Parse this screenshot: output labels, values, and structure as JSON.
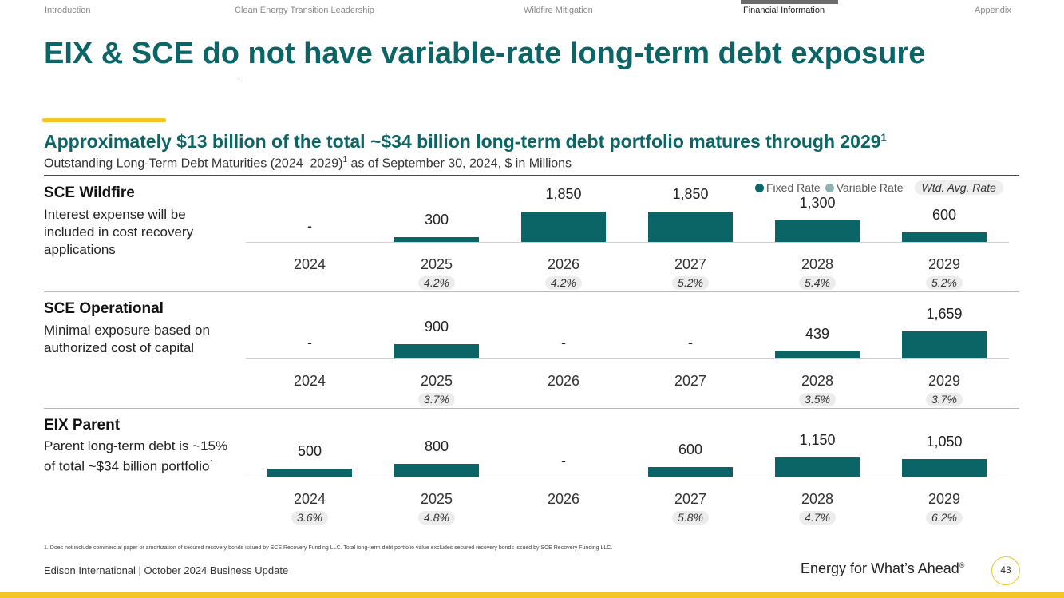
{
  "nav": {
    "items": [
      "Introduction",
      "Clean Energy Transition Leadership",
      "Wildfire Mitigation",
      "Financial Information",
      "Appendix"
    ],
    "active": "Financial Information"
  },
  "title": "EIX & SCE do not have variable-rate long-term debt exposure",
  "subtitle": "Approximately $13 billion of the total ~$34 billion long-term debt portfolio matures through 2029",
  "subtitle_sup": "1",
  "caption_pre": "Outstanding Long-Term Debt Maturities (2024–2029)",
  "caption_sup": "1",
  "caption_post": " as of September 30, 2024, $ in Millions",
  "legend": {
    "fixed": "Fixed Rate",
    "variable": "Variable Rate",
    "wtd": "Wtd. Avg. Rate",
    "fixed_color": "#0b6466",
    "variable_color": "#8fb2b3"
  },
  "colors": {
    "accent": "#0b6466",
    "highlight": "#f5c425"
  },
  "chart_data": [
    {
      "type": "bar",
      "title": "SCE Wildfire",
      "description": "Interest expense will be included in cost recovery applications",
      "categories": [
        "2024",
        "2025",
        "2026",
        "2027",
        "2028",
        "2029"
      ],
      "values": [
        0,
        300,
        1850,
        1850,
        1300,
        600
      ],
      "value_labels": [
        "-",
        "300",
        "1,850",
        "1,850",
        "1,300",
        "600"
      ],
      "rates": [
        "",
        "4.2%",
        "4.2%",
        "5.2%",
        "5.4%",
        "5.2%"
      ]
    },
    {
      "type": "bar",
      "title": "SCE Operational",
      "description": "Minimal exposure based on authorized cost of capital",
      "categories": [
        "2024",
        "2025",
        "2026",
        "2027",
        "2028",
        "2029"
      ],
      "values": [
        0,
        900,
        0,
        0,
        439,
        1659
      ],
      "value_labels": [
        "-",
        "900",
        "-",
        "-",
        "439",
        "1,659"
      ],
      "rates": [
        "",
        "3.7%",
        "",
        "",
        "3.5%",
        "3.7%"
      ]
    },
    {
      "type": "bar",
      "title": "EIX Parent",
      "description": "Parent long-term debt is ~15% of total ~$34 billion portfolio",
      "description_sup": "1",
      "categories": [
        "2024",
        "2025",
        "2026",
        "2027",
        "2028",
        "2029"
      ],
      "values": [
        500,
        800,
        0,
        600,
        1150,
        1050
      ],
      "value_labels": [
        "500",
        "800",
        "-",
        "600",
        "1,150",
        "1,050"
      ],
      "rates": [
        "3.6%",
        "4.8%",
        "",
        "5.8%",
        "4.7%",
        "6.2%"
      ]
    }
  ],
  "footnote": "1.   Does not include commercial paper or amortization of secured recovery bonds issued by SCE Recovery Funding LLC. Total long-term debt portfolio value excludes secured recovery bonds issued by SCE Recovery Funding LLC.",
  "footer": {
    "left": "Edison International |  October 2024 Business Update",
    "tagline": "Energy for What’s Ahead",
    "tagline_mark": "®",
    "page": "43"
  }
}
